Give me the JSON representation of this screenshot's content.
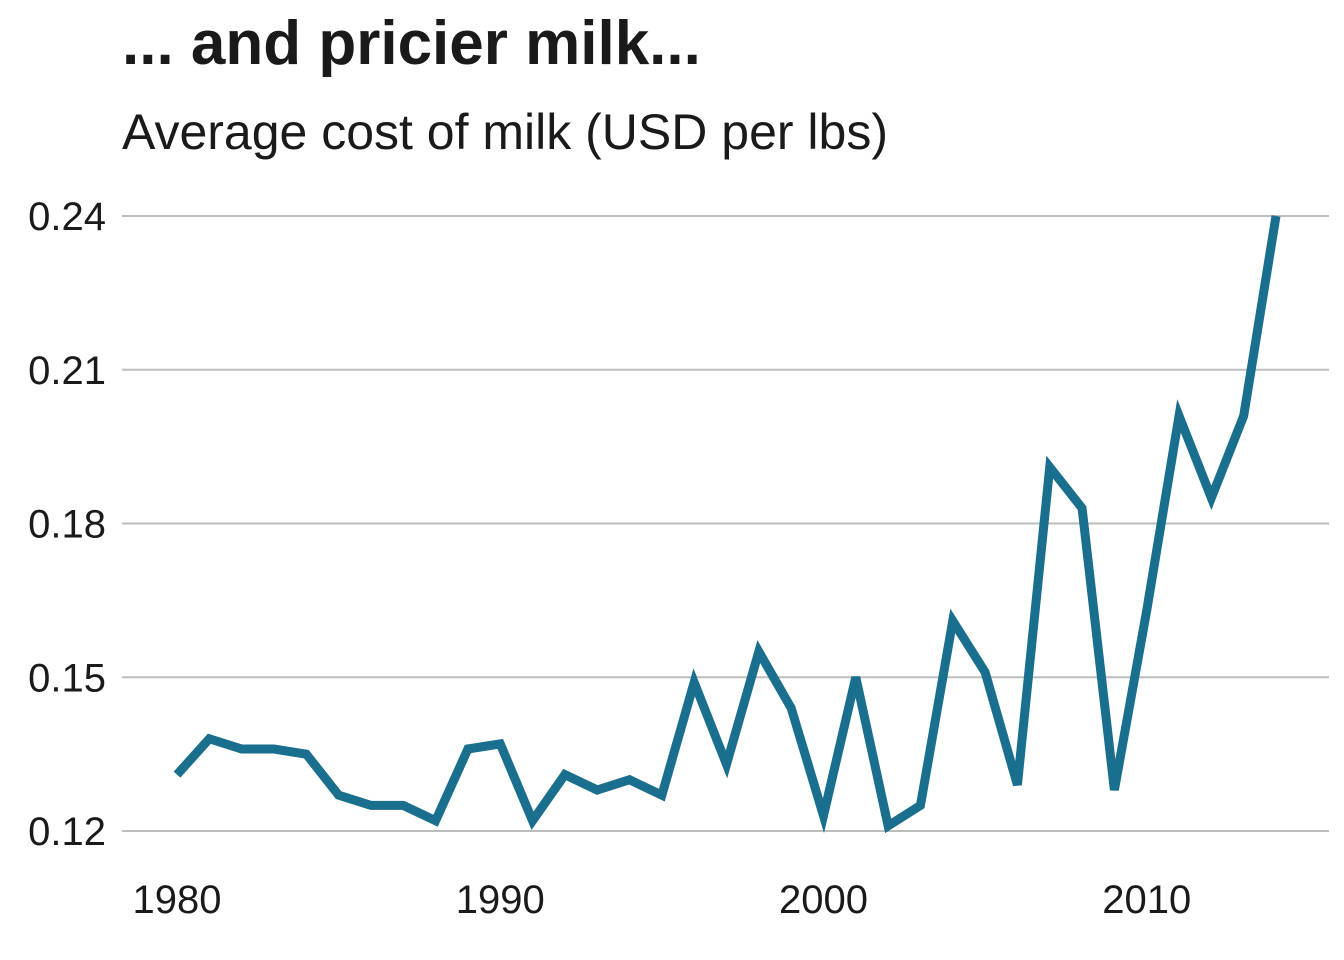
{
  "chart_data": {
    "type": "line",
    "title": "... and pricier milk...",
    "subtitle": "Average cost of milk (USD per lbs)",
    "xlabel": "",
    "ylabel": "",
    "x": [
      1980,
      1981,
      1982,
      1983,
      1984,
      1985,
      1986,
      1987,
      1988,
      1989,
      1990,
      1991,
      1992,
      1993,
      1994,
      1995,
      1996,
      1997,
      1998,
      1999,
      2000,
      2001,
      2002,
      2003,
      2004,
      2005,
      2006,
      2007,
      2008,
      2009,
      2010,
      2011,
      2012,
      2013,
      2014
    ],
    "series": [
      {
        "values": [
          0.131,
          0.138,
          0.136,
          0.136,
          0.135,
          0.127,
          0.125,
          0.125,
          0.122,
          0.136,
          0.137,
          0.122,
          0.131,
          0.128,
          0.13,
          0.127,
          0.149,
          0.133,
          0.155,
          0.144,
          0.123,
          0.15,
          0.121,
          0.125,
          0.161,
          0.151,
          0.129,
          0.191,
          0.183,
          0.128,
          0.163,
          0.201,
          0.185,
          0.201,
          0.24
        ],
        "color": "#1a6e8e"
      }
    ],
    "xlim": [
      1980,
      2014
    ],
    "ylim": [
      0.12,
      0.24
    ],
    "xticks": [
      1980,
      1990,
      2000,
      2010
    ],
    "xtick_labels": [
      "1980",
      "1990",
      "2000",
      "2010"
    ],
    "yticks": [
      0.12,
      0.15,
      0.18,
      0.21,
      0.24
    ],
    "ytick_labels": [
      "0.12",
      "0.15",
      "0.18",
      "0.21",
      "0.24"
    ],
    "grid": "horizontal",
    "legend": "none"
  }
}
